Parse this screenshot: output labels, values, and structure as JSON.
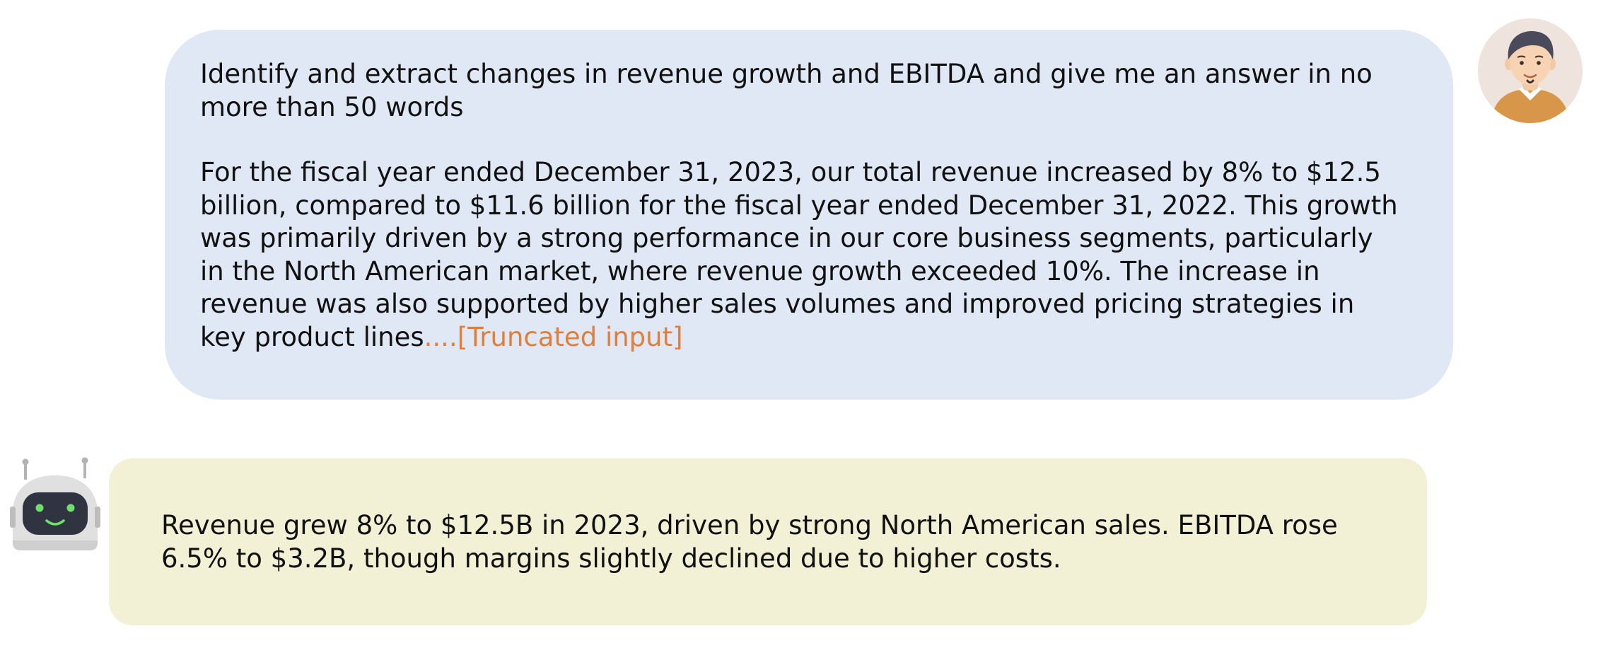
{
  "conversation": {
    "user": {
      "avatar_icon": "user-avatar-icon",
      "instruction": "Identify and extract changes in revenue growth and EBITDA and give me an answer in no more than 50 words",
      "context": "For the fiscal year ended December 31, 2023, our total revenue increased by 8% to $12.5 billion, compared to $11.6 billion for the fiscal year ended December 31, 2022. This growth was primarily driven by a strong performance in our core business segments, particularly in the North American market, where revenue growth exceeded 10%. The increase in revenue was also supported by higher sales volumes and improved pricing strategies in key product lines",
      "truncation_marker": "....[Truncated input]",
      "bubble_color": "#dfe8f4",
      "accent_color": "#e07f3b"
    },
    "assistant": {
      "avatar_icon": "robot-avatar-icon",
      "response": "Revenue grew 8% to $12.5B in 2023, driven by strong North American sales. EBITDA rose 6.5% to $3.2B, though margins slightly declined due to higher costs.",
      "bubble_color": "#f2f0d5"
    }
  }
}
